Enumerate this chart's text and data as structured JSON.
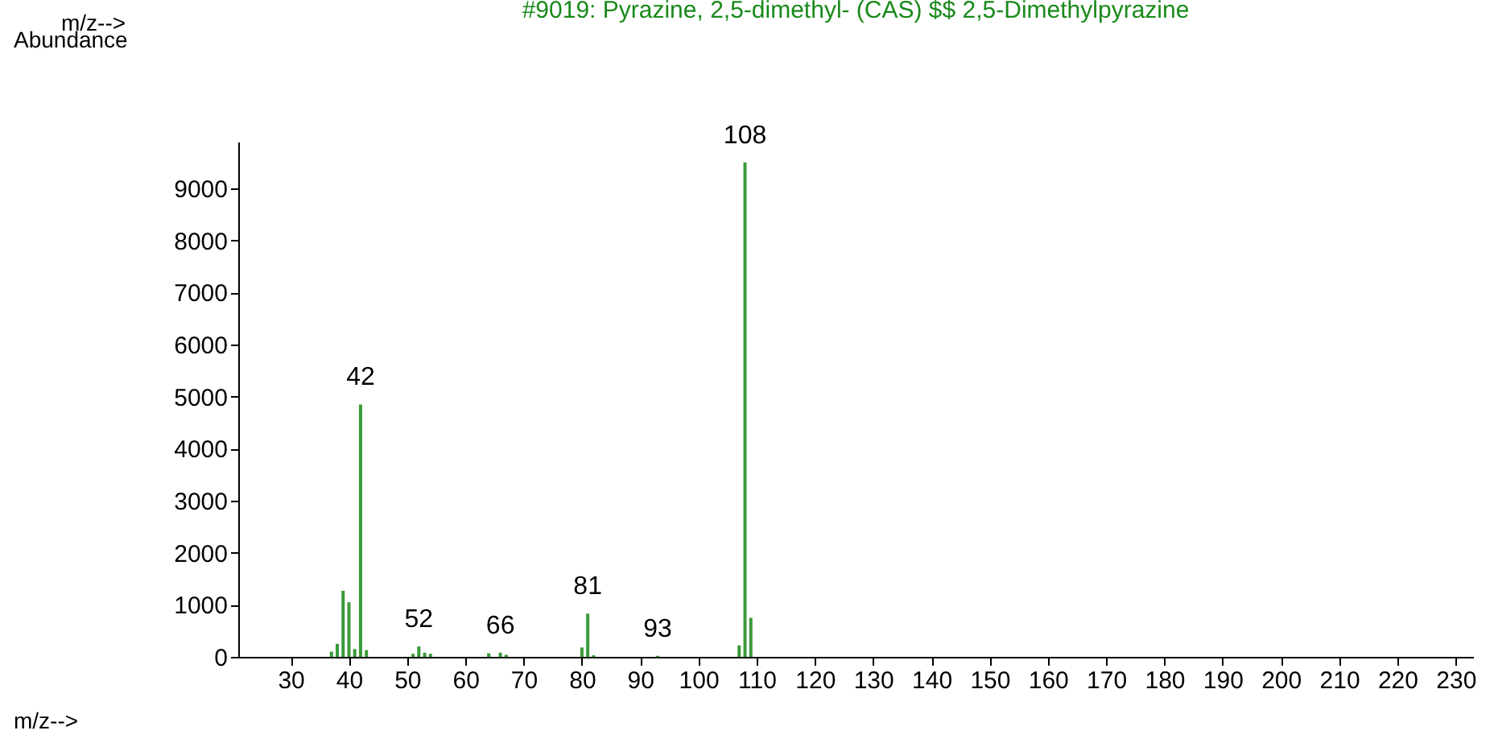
{
  "chart_data": {
    "type": "bar",
    "title": "#9019: Pyrazine, 2,5-dimethyl- (CAS) $$ 2,5-Dimethylpyrazine",
    "xlabel": "m/z-->",
    "ylabel": "Abundance",
    "annotations": [
      "m/z-->",
      {
        "text": "42",
        "x": 42,
        "y": 4850
      },
      {
        "text": "52",
        "x": 52,
        "y": 200
      },
      {
        "text": "66",
        "x": 66,
        "y": 80
      },
      {
        "text": "81",
        "x": 81,
        "y": 830
      },
      {
        "text": "93",
        "x": 93,
        "y": 20
      },
      {
        "text": "108",
        "x": 108,
        "y": 9500
      }
    ],
    "x": [
      37,
      38,
      39,
      40,
      41,
      42,
      43,
      51,
      52,
      53,
      54,
      64,
      66,
      67,
      80,
      81,
      82,
      93,
      107,
      108,
      109
    ],
    "values": [
      100,
      250,
      1270,
      1050,
      150,
      4850,
      130,
      60,
      200,
      80,
      60,
      70,
      80,
      40,
      180,
      830,
      30,
      20,
      220,
      9500,
      750
    ],
    "color": "#3a9a3a",
    "xlim": [
      21,
      233
    ],
    "xticks": [
      30,
      40,
      50,
      60,
      70,
      80,
      90,
      100,
      110,
      120,
      130,
      140,
      150,
      160,
      170,
      180,
      190,
      200,
      210,
      220,
      230
    ],
    "ylim": [
      0,
      9900
    ],
    "yticks": [
      0,
      1000,
      2000,
      3000,
      4000,
      5000,
      6000,
      7000,
      8000,
      9000
    ],
    "grid": false
  }
}
